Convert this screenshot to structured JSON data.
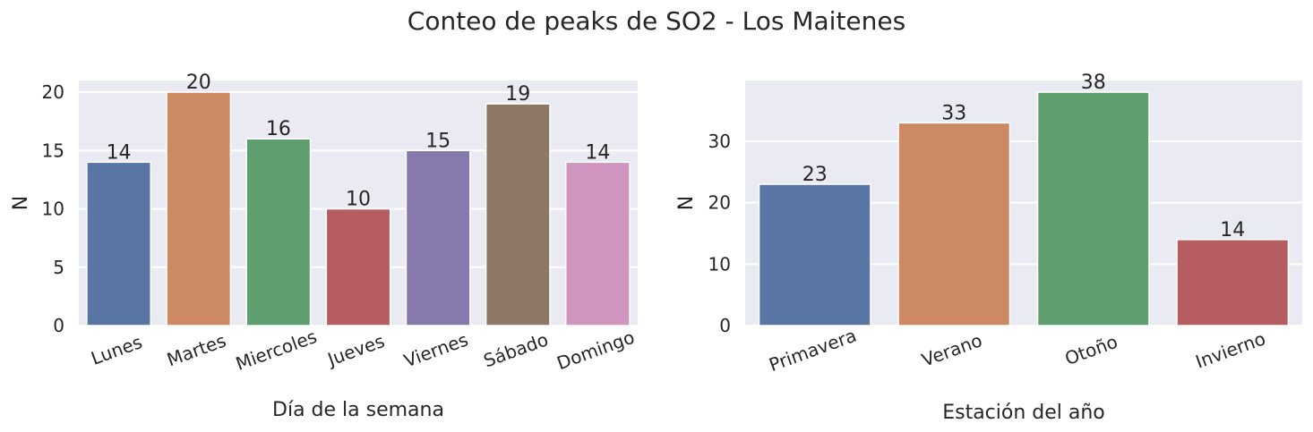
{
  "figure": {
    "title": "Conteo de peaks de SO2 - Los Maitenes"
  },
  "chart_data": [
    {
      "type": "bar",
      "title": "",
      "xlabel": "Día de la semana",
      "ylabel": "N",
      "categories": [
        "Lunes",
        "Martes",
        "Miercoles",
        "Jueves",
        "Viernes",
        "Sábado",
        "Domingo"
      ],
      "values": [
        14,
        20,
        16,
        10,
        15,
        19,
        14
      ],
      "yticks": [
        0,
        5,
        10,
        15,
        20
      ],
      "ylim": [
        0,
        21
      ],
      "colors": [
        "#5875a4",
        "#cc8963",
        "#5f9e6e",
        "#b55d60",
        "#857aab",
        "#8d7866",
        "#d095bf"
      ],
      "grid": true
    },
    {
      "type": "bar",
      "title": "",
      "xlabel": "Estación del año",
      "ylabel": "N",
      "categories": [
        "Primavera",
        "Verano",
        "Otoño",
        "Invierno"
      ],
      "values": [
        23,
        33,
        38,
        14
      ],
      "yticks": [
        0,
        10,
        20,
        30
      ],
      "ylim": [
        0,
        39.9
      ],
      "colors": [
        "#5875a4",
        "#cc8963",
        "#5f9e6e",
        "#b55d60"
      ],
      "grid": true
    }
  ]
}
